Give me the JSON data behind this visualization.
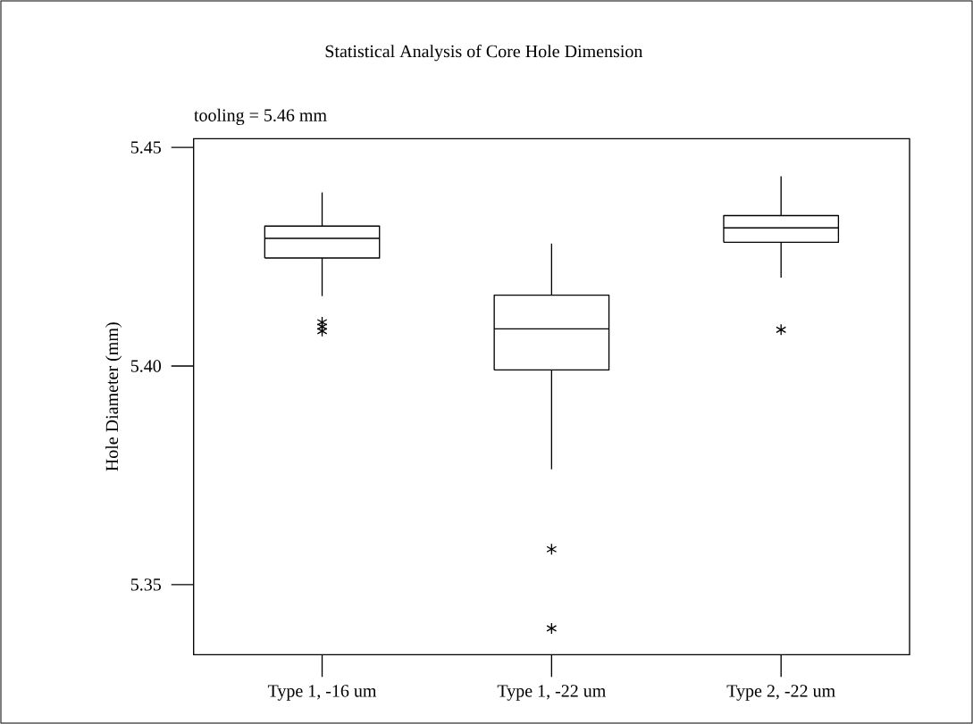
{
  "chart_data": {
    "type": "box",
    "title": "Statistical Analysis of Core Hole Dimension",
    "annotations": [
      "tooling = 5.46 mm"
    ],
    "ylabel": "Hole Diameter (mm)",
    "categories": [
      "Type 1, -16 um",
      "Type 1, -22 um",
      "Type 2, -22 um"
    ],
    "boxes": [
      {
        "low": 5.416,
        "q1": 5.4247,
        "median": 5.4292,
        "q3": 5.432,
        "high": 5.4397,
        "outliers": [
          5.408,
          5.409,
          5.41
        ]
      },
      {
        "low": 5.3764,
        "q1": 5.3991,
        "median": 5.4085,
        "q3": 5.4162,
        "high": 5.428,
        "outliers": [
          5.3581,
          5.34
        ]
      },
      {
        "low": 5.4202,
        "q1": 5.4283,
        "median": 5.4316,
        "q3": 5.4344,
        "high": 5.4434,
        "outliers": [
          5.4083
        ]
      }
    ],
    "color": "#000000",
    "marker": "star",
    "ylim": [
      5.334,
      5.452
    ],
    "yticks": [
      {
        "value": 5.35,
        "label": "5.35"
      },
      {
        "value": 5.4,
        "label": "5.40"
      },
      {
        "value": 5.45,
        "label": "5.45"
      }
    ]
  }
}
